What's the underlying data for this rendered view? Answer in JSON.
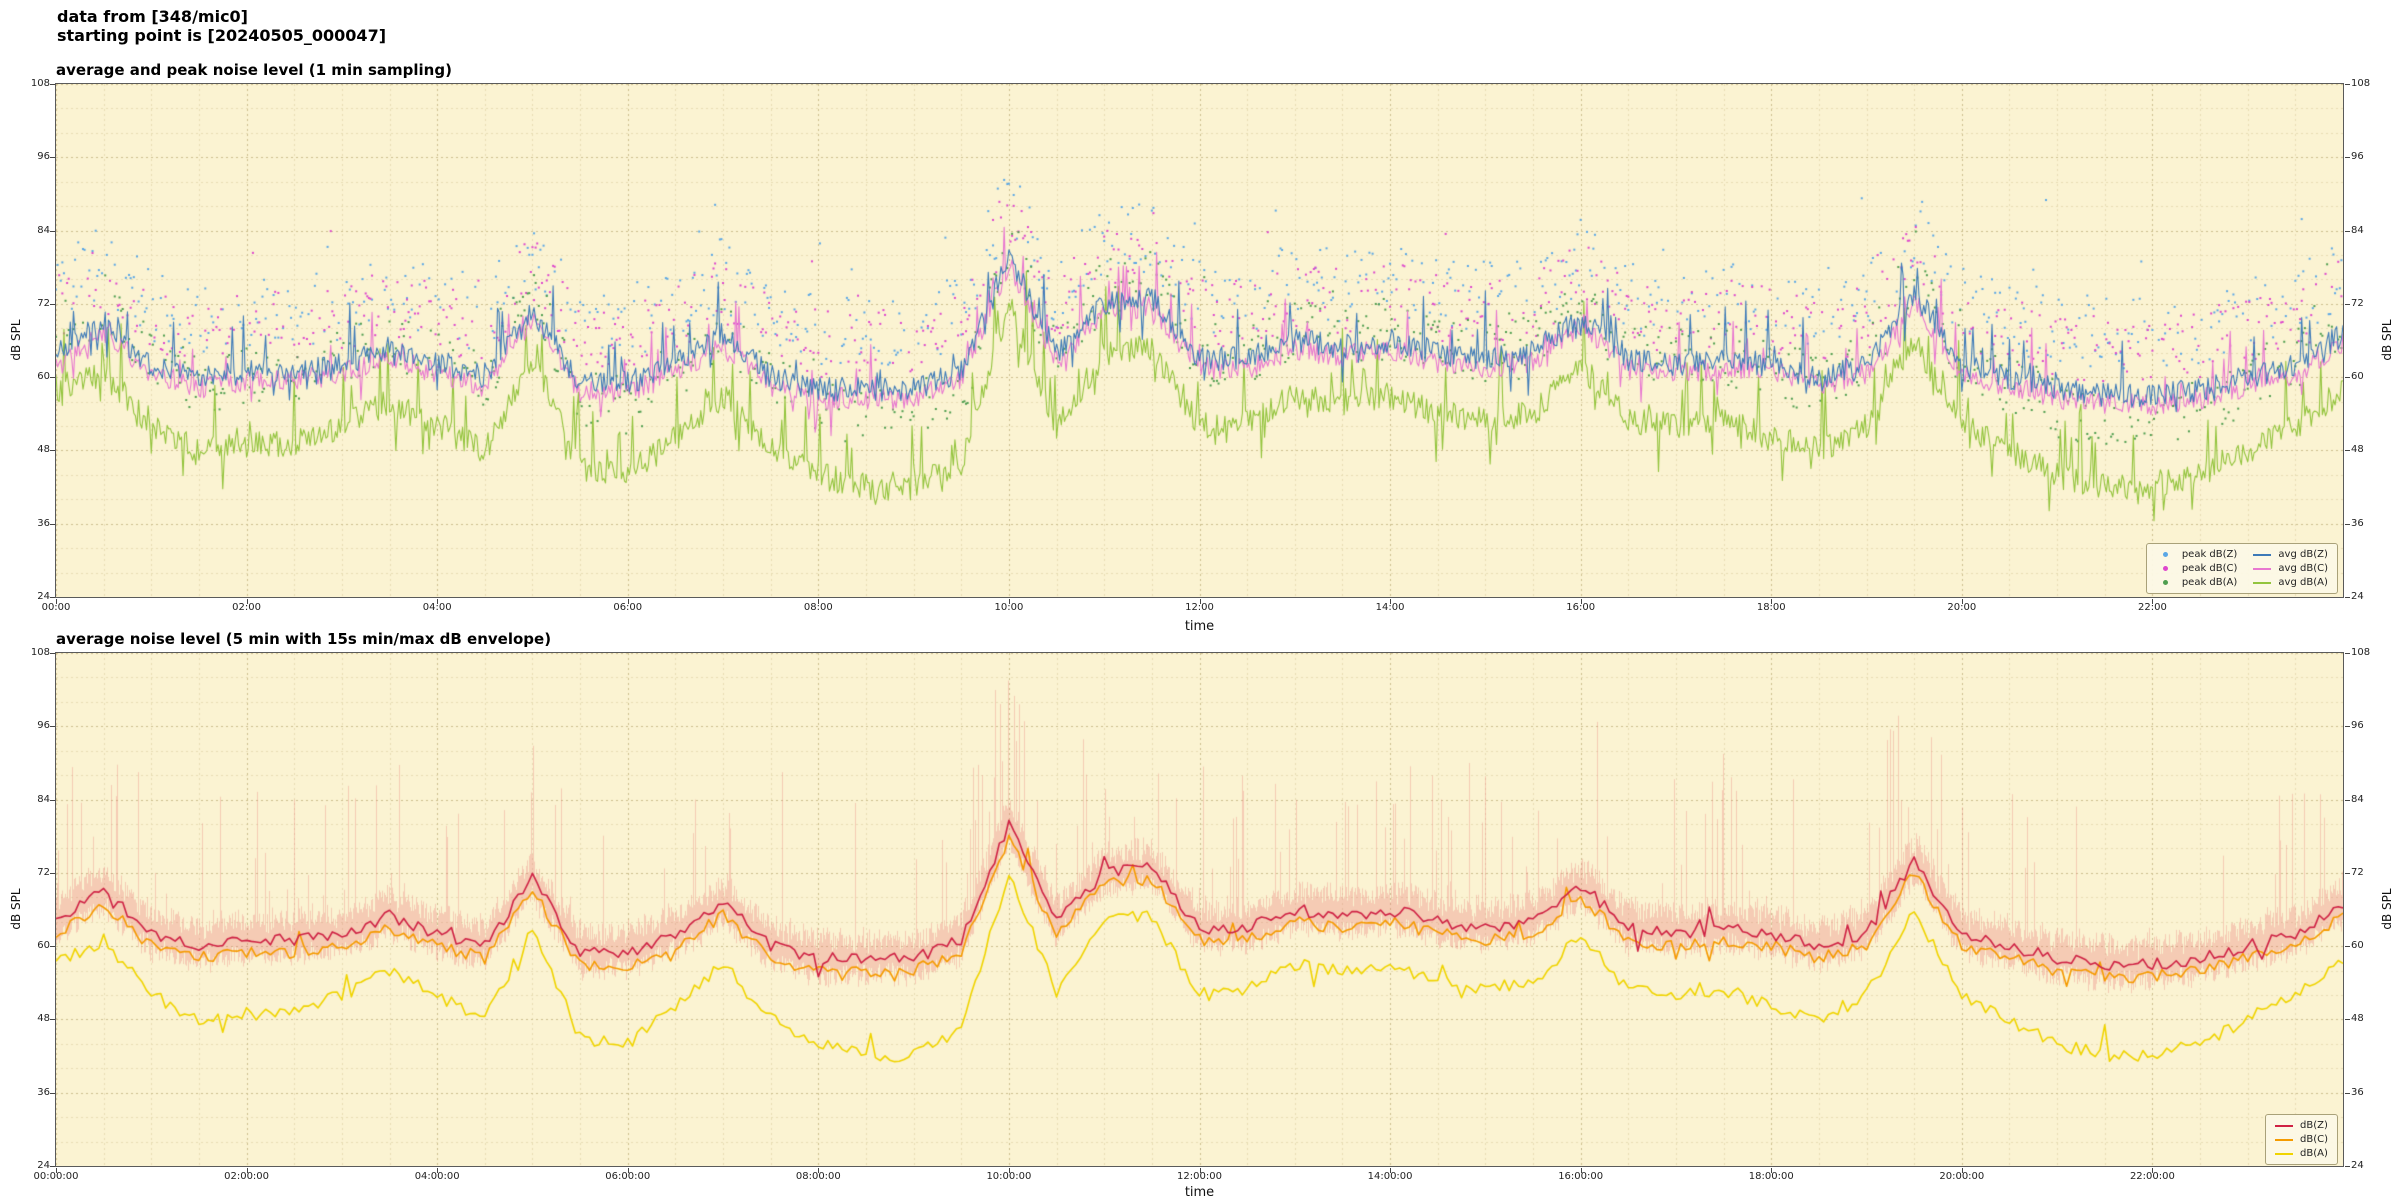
{
  "header": {
    "line1": "data from [348/mic0]",
    "line2": "starting point is [20240505_000047]"
  },
  "style": {
    "page_bg": "#ffffff",
    "plot_bg": "#fbf3d2",
    "grid_major": "#cdbf8e",
    "grid_minor": "#e7ddb4",
    "axis_color": "#454545",
    "text_color": "#111111"
  },
  "chart_data": [
    {
      "type": "line+scatter",
      "title": "average and peak noise level (1 min sampling)",
      "xlabel": "time",
      "ylabel": "dB SPL",
      "ylim": [
        24,
        108
      ],
      "yticks": [
        24,
        36,
        48,
        60,
        72,
        84,
        96,
        108
      ],
      "xlim_hours": [
        0,
        24
      ],
      "xticks_hours": [
        0,
        2,
        4,
        6,
        8,
        10,
        12,
        14,
        16,
        18,
        20,
        22
      ],
      "xtick_labels": [
        "00:00",
        "02:00",
        "04:00",
        "06:00",
        "08:00",
        "10:00",
        "12:00",
        "14:00",
        "16:00",
        "18:00",
        "20:00",
        "22:00"
      ],
      "grid": true,
      "grid_minor_x_hours": 0.5,
      "grid_minor_y_db": 4,
      "legend_position": "lower right",
      "legend_columns": 2,
      "n_points": 1440,
      "base_hours_step": 0.5,
      "bases": {
        "z": [
          64,
          69,
          62,
          60,
          61,
          61,
          62,
          65,
          62,
          60,
          71,
          59,
          59,
          62,
          67,
          60,
          58,
          58,
          58,
          61,
          80,
          64,
          72,
          73,
          63,
          63,
          66,
          65,
          66,
          64,
          63,
          64,
          70,
          63,
          62,
          63,
          62,
          60,
          62,
          74,
          62,
          60,
          58,
          57,
          57,
          58,
          60,
          62,
          67
        ],
        "a": [
          57,
          61,
          52,
          48,
          49,
          49,
          52,
          56,
          52,
          48,
          63,
          45,
          44,
          50,
          57,
          48,
          44,
          42,
          42,
          46,
          72,
          52,
          64,
          65,
          52,
          53,
          57,
          56,
          57,
          54,
          53,
          54,
          62,
          53,
          52,
          53,
          50,
          48,
          52,
          66,
          52,
          48,
          44,
          42,
          42,
          44,
          48,
          52,
          58
        ]
      },
      "series": [
        {
          "name": "peak dB(Z)",
          "kind": "scatter",
          "color": "#5aa7e6",
          "base": "z",
          "delta": 4,
          "spread": 12,
          "outlier_prob": 0.03,
          "outlier_amp": 18,
          "skip_prob": 0.45,
          "seed": 11
        },
        {
          "name": "peak dB(C)",
          "kind": "scatter",
          "color": "#de46cd",
          "base": "z",
          "delta": 2,
          "spread": 11,
          "outlier_prob": 0.022,
          "outlier_amp": 15,
          "skip_prob": 0.45,
          "seed": 12
        },
        {
          "name": "peak dB(A)",
          "kind": "scatter",
          "color": "#4f9e4f",
          "base": "a",
          "delta": 6,
          "spread": 10,
          "outlier_prob": 0.02,
          "outlier_amp": 11,
          "skip_prob": 0.45,
          "seed": 13
        },
        {
          "name": "avg dB(Z)",
          "kind": "line",
          "color": "#3d7ab8",
          "base": "z",
          "delta": 0,
          "jitter": 2.0,
          "spike_prob": 0.1,
          "spike_amp": 8,
          "width": 1.1,
          "seed": 21
        },
        {
          "name": "avg dB(C)",
          "kind": "line",
          "color": "#e878d0",
          "base": "z",
          "delta": -1.5,
          "jitter": 1.8,
          "spike_prob": 0.1,
          "spike_amp": 7,
          "width": 1.1,
          "seed": 22
        },
        {
          "name": "avg dB(A)",
          "kind": "line",
          "color": "#93c43d",
          "base": "a",
          "delta": 0,
          "jitter": 2.2,
          "spike_prob": 0.12,
          "spike_amp": 9,
          "width": 1.1,
          "seed": 23
        }
      ]
    },
    {
      "type": "line+envelope",
      "title": "average noise level (5 min with 15s min/max dB envelope)",
      "xlabel": "time",
      "ylabel": "dB SPL",
      "ylim": [
        24,
        108
      ],
      "yticks": [
        24,
        36,
        48,
        60,
        72,
        84,
        96,
        108
      ],
      "xlim_hours": [
        0,
        24
      ],
      "xticks_hours": [
        0,
        2,
        4,
        6,
        8,
        10,
        12,
        14,
        16,
        18,
        20,
        22
      ],
      "xtick_labels": [
        "00:00:00",
        "02:00:00",
        "04:00:00",
        "06:00:00",
        "08:00:00",
        "10:00:00",
        "12:00:00",
        "14:00:00",
        "16:00:00",
        "18:00:00",
        "20:00:00",
        "22:00:00"
      ],
      "grid": true,
      "grid_minor_x_hours": 0.5,
      "grid_minor_y_db": 4,
      "legend_position": "lower right",
      "legend_columns": 1,
      "n_points": 480,
      "base_hours_step": 0.5,
      "bases": {
        "z": [
          64,
          69,
          62,
          60,
          61,
          61,
          62,
          65,
          62,
          60,
          71,
          59,
          59,
          62,
          67,
          60,
          58,
          58,
          58,
          61,
          80,
          64,
          72,
          73,
          63,
          63,
          66,
          65,
          66,
          64,
          63,
          64,
          70,
          63,
          62,
          63,
          62,
          60,
          62,
          74,
          62,
          60,
          58,
          57,
          57,
          58,
          60,
          62,
          67
        ],
        "a": [
          57,
          61,
          52,
          48,
          49,
          49,
          52,
          56,
          52,
          48,
          63,
          45,
          44,
          50,
          57,
          48,
          44,
          42,
          42,
          46,
          72,
          52,
          64,
          65,
          52,
          53,
          57,
          56,
          57,
          54,
          53,
          54,
          62,
          53,
          52,
          53,
          50,
          48,
          52,
          66,
          52,
          48,
          44,
          42,
          42,
          44,
          48,
          52,
          58
        ]
      },
      "envelope": {
        "base": "z",
        "color": "rgba(233,118,118,0.32)",
        "min_drop": 3,
        "max_rise": 3.5,
        "spike_prob": 0.07,
        "spike_amp": 25,
        "seed": 99
      },
      "series": [
        {
          "name": "dB(Z)",
          "kind": "line",
          "color": "#cf2144",
          "base": "z",
          "delta": 0,
          "jitter": 1.0,
          "spike_prob": 0.05,
          "spike_amp": 4,
          "width": 1.6,
          "seed": 71
        },
        {
          "name": "dB(C)",
          "kind": "line",
          "color": "#f59b00",
          "base": "z",
          "delta": -2,
          "jitter": 1.0,
          "spike_prob": 0.05,
          "spike_amp": 4,
          "width": 1.6,
          "seed": 72
        },
        {
          "name": "dB(A)",
          "kind": "line",
          "color": "#f0d400",
          "base": "a",
          "delta": 0,
          "jitter": 1.1,
          "spike_prob": 0.05,
          "spike_amp": 4,
          "width": 1.6,
          "seed": 73
        }
      ]
    }
  ]
}
